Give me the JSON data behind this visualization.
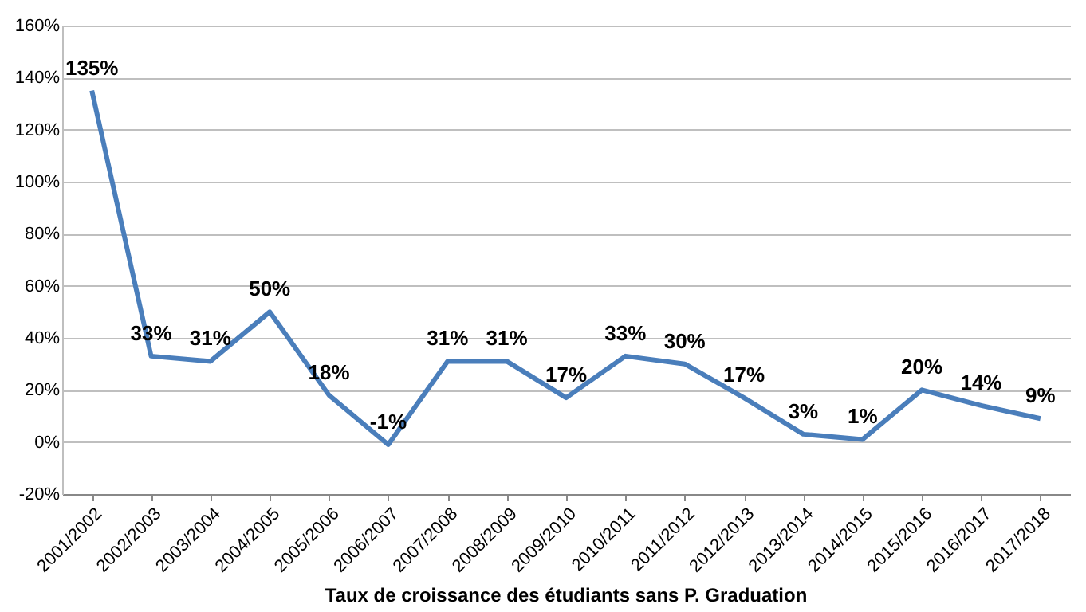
{
  "chart_data": {
    "type": "line",
    "title": "Taux de croissance des étudiants sans P. Graduation",
    "categories": [
      "2001/2002",
      "2002/2003",
      "2003/2004",
      "2004/2005",
      "2005/2006",
      "2006/2007",
      "2007/2008",
      "2008/2009",
      "2009/2010",
      "2010/2011",
      "2011/2012",
      "2012/2013",
      "2013/2014",
      "2014/2015",
      "2015/2016",
      "2016/2017",
      "2017/2018"
    ],
    "series": [
      {
        "color": "#4a7ebb",
        "values": [
          135,
          33,
          31,
          50,
          18,
          -1,
          31,
          31,
          17,
          33,
          30,
          17,
          3,
          1,
          20,
          14,
          9
        ],
        "value_labels": [
          "135%",
          "33%",
          "31%",
          "50%",
          "18%",
          "-1%",
          "31%",
          "31%",
          "17%",
          "33%",
          "30%",
          "17%",
          "3%",
          "1%",
          "20%",
          "14%",
          "9%"
        ]
      }
    ],
    "ylim": [
      -20,
      160
    ],
    "yticks": [
      {
        "value": -20,
        "label": "-20%"
      },
      {
        "value": 0,
        "label": "0%"
      },
      {
        "value": 20,
        "label": "20%"
      },
      {
        "value": 40,
        "label": "40%"
      },
      {
        "value": 60,
        "label": "60%"
      },
      {
        "value": 80,
        "label": "80%"
      },
      {
        "value": 100,
        "label": "100%"
      },
      {
        "value": 120,
        "label": "120%"
      },
      {
        "value": 140,
        "label": "140%"
      },
      {
        "value": 160,
        "label": "160%"
      }
    ],
    "grid": "y",
    "marker": "none",
    "line_style": "solid"
  }
}
